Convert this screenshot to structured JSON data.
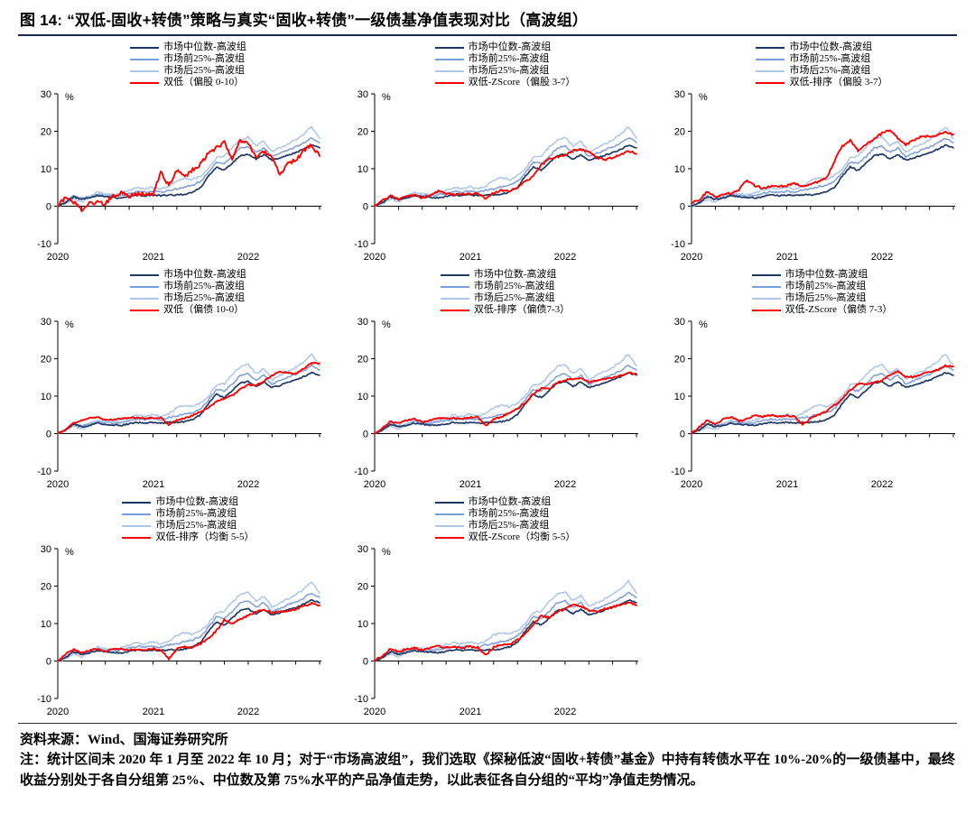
{
  "title": "图 14:  “双低-固收+转债”策略与真实“固收+转债”一级债基净值表现对比（高波组）",
  "source": "资料来源：Wind、国海证券研究所",
  "note": "注：统计区间未 2020 年 1 月至 2022 年 10 月；对于“市场高波组”，我们选取《探秘低波“固收+转债”基金》中持有转债水平在 10%-20%的一级债基中，最终收益分别处于各自分组第 25%、中位数及第 75%水平的产品净值走势，以此表征各自分组的“平均”净值走势情况。",
  "colors": {
    "median": "#1F3864",
    "front": "#7D9ED6",
    "back": "#AEC6E8",
    "dual": "#FF0000"
  },
  "axis": {
    "y_unit": "%",
    "y_ticks": [
      "30",
      "20",
      "10",
      "0",
      "-10"
    ],
    "x_ticks": [
      "2020",
      "2021",
      "2022"
    ],
    "ylim": [
      -10,
      30
    ],
    "x_range": [
      "2020-01",
      "2022-10"
    ]
  },
  "chart_data": {
    "type": "line",
    "x_months_start": "2020-01",
    "x_months_end": "2022-10",
    "n_points": 34,
    "market_series": [
      {
        "name": "市场中位数-高波组",
        "color_key": "median",
        "jitter": 0.35,
        "values": [
          0,
          1.0,
          2.5,
          1.8,
          2.2,
          2.8,
          2.5,
          2.3,
          2.2,
          2.6,
          3.0,
          2.8,
          3.0,
          2.8,
          3.0,
          3.0,
          3.2,
          3.8,
          5.0,
          8.0,
          10.5,
          9.6,
          11.5,
          13.5,
          13.9,
          12.6,
          13.8,
          12.3,
          12.9,
          13.6,
          14.3,
          15.2,
          16.3,
          15.6
        ]
      },
      {
        "name": "市场前25%-高波组",
        "color_key": "front",
        "jitter": 0.45,
        "values": [
          0,
          1.1,
          2.8,
          2.0,
          2.6,
          3.3,
          2.9,
          2.7,
          3.0,
          3.4,
          3.9,
          3.7,
          4.0,
          3.7,
          4.3,
          4.6,
          5.2,
          5.6,
          6.6,
          9.0,
          11.8,
          11.4,
          13.2,
          15.5,
          16.0,
          14.3,
          15.6,
          13.2,
          14.1,
          15.0,
          15.8,
          16.8,
          18.2,
          17.0
        ]
      },
      {
        "name": "市场后25%-高波组",
        "color_key": "back",
        "jitter": 0.55,
        "values": [
          0,
          0.7,
          1.9,
          1.1,
          2.4,
          3.7,
          3.3,
          3.1,
          3.6,
          4.3,
          4.9,
          4.6,
          5.1,
          4.6,
          5.3,
          6.9,
          7.6,
          7.1,
          8.1,
          10.0,
          13.0,
          13.3,
          15.8,
          17.8,
          18.4,
          16.1,
          17.4,
          14.4,
          15.6,
          16.6,
          17.7,
          19.2,
          21.3,
          18.1
        ]
      }
    ],
    "subplots": [
      {
        "dual_label": "双低（偏股 0-10）",
        "jitter": 1.1,
        "dual_values": [
          0,
          2.5,
          1.2,
          -0.8,
          0.8,
          1.0,
          0.6,
          2.8,
          3.6,
          2.8,
          3.2,
          3.3,
          3.2,
          9.0,
          5.6,
          9.6,
          8.0,
          9.8,
          11.2,
          14.2,
          15.6,
          17.2,
          12.2,
          17.8,
          16.4,
          13.2,
          14.4,
          13.4,
          8.3,
          11.6,
          12.2,
          14.8,
          16.4,
          13.4
        ]
      },
      {
        "dual_label": "双低-ZScore（偏股 3-7）",
        "jitter": 0.5,
        "dual_values": [
          0,
          1.5,
          2.8,
          1.8,
          2.5,
          3.0,
          2.2,
          2.8,
          4.0,
          3.4,
          3.0,
          3.2,
          3.2,
          3.5,
          2.0,
          3.6,
          4.2,
          4.0,
          5.0,
          6.6,
          8.0,
          11.0,
          12.6,
          13.2,
          13.6,
          14.8,
          15.2,
          14.4,
          13.0,
          12.4,
          13.0,
          13.8,
          14.8,
          14.0
        ]
      },
      {
        "dual_label": "双低-排序（偏股 3-7）",
        "jitter": 0.6,
        "dual_values": [
          0.8,
          1.8,
          4.0,
          2.5,
          3.0,
          3.5,
          4.5,
          7.0,
          5.5,
          4.8,
          5.5,
          5.2,
          5.5,
          6.0,
          5.2,
          6.0,
          6.5,
          7.5,
          12.0,
          16.0,
          17.6,
          14.8,
          16.5,
          18.0,
          19.5,
          20.2,
          18.2,
          16.4,
          17.6,
          18.8,
          18.6,
          19.0,
          19.8,
          19.2
        ]
      },
      {
        "dual_label": "双低（偏债 10-0）",
        "jitter": 0.35,
        "dual_values": [
          0,
          1.2,
          2.8,
          3.5,
          4.2,
          4.4,
          3.6,
          3.8,
          4.0,
          4.2,
          4.3,
          4.0,
          4.2,
          4.3,
          2.3,
          3.6,
          4.1,
          4.8,
          5.8,
          7.0,
          8.6,
          9.4,
          10.2,
          11.8,
          13.0,
          12.9,
          14.0,
          15.5,
          16.6,
          16.3,
          16.0,
          17.4,
          18.9,
          18.8
        ]
      },
      {
        "dual_label": "双低-排序（偏债7-3）",
        "jitter": 0.4,
        "dual_values": [
          0,
          1.5,
          3.2,
          2.8,
          3.5,
          4.0,
          3.1,
          3.5,
          4.2,
          4.0,
          4.2,
          4.0,
          4.3,
          4.5,
          2.0,
          3.8,
          4.5,
          5.5,
          6.6,
          8.2,
          10.6,
          12.1,
          11.9,
          13.6,
          14.3,
          14.6,
          14.8,
          13.8,
          14.2,
          14.5,
          14.9,
          15.5,
          16.3,
          15.9
        ]
      },
      {
        "dual_label": "双低-ZScore（偏债 7-3）",
        "jitter": 0.45,
        "dual_values": [
          0,
          1.8,
          3.5,
          2.5,
          3.8,
          4.5,
          3.3,
          4.0,
          4.8,
          4.5,
          5.0,
          4.6,
          4.8,
          4.6,
          2.3,
          4.0,
          5.0,
          6.0,
          7.6,
          9.2,
          11.6,
          13.3,
          13.1,
          13.6,
          14.1,
          15.6,
          16.6,
          15.3,
          15.1,
          15.9,
          16.4,
          17.1,
          18.1,
          17.9
        ]
      },
      {
        "dual_label": "双低-排序（均衡 5-5）",
        "jitter": 0.5,
        "dual_values": [
          0,
          1.8,
          3.0,
          2.2,
          2.8,
          3.3,
          2.6,
          3.2,
          3.3,
          3.0,
          3.2,
          3.0,
          3.2,
          3.0,
          0.5,
          3.2,
          3.8,
          3.6,
          4.6,
          6.1,
          8.1,
          10.9,
          10.1,
          11.1,
          12.1,
          13.1,
          13.6,
          12.9,
          13.1,
          13.4,
          13.9,
          14.6,
          15.4,
          14.9
        ]
      },
      {
        "dual_label": "双低-ZScore（均衡 5-5）",
        "jitter": 0.5,
        "dual_values": [
          0,
          1.5,
          3.2,
          2.5,
          3.2,
          3.5,
          2.9,
          3.5,
          4.0,
          3.6,
          3.8,
          3.6,
          3.8,
          3.6,
          1.6,
          3.6,
          4.5,
          4.3,
          5.6,
          7.1,
          9.6,
          12.1,
          11.6,
          13.1,
          13.9,
          14.9,
          14.6,
          13.6,
          13.1,
          13.9,
          14.4,
          15.1,
          15.6,
          14.9
        ]
      }
    ]
  }
}
